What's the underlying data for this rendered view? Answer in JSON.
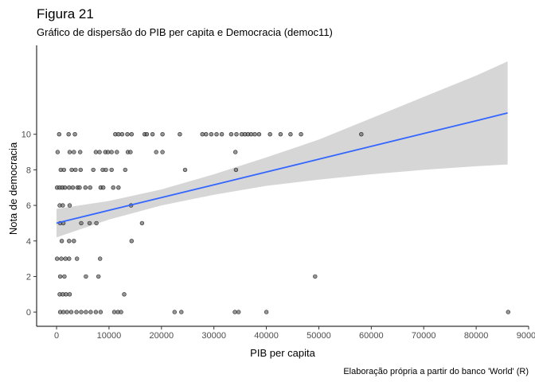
{
  "chart_data": {
    "type": "scatter",
    "title": "Figura 21",
    "subtitle": "Gráfico de dispersão do PIB per capita e Democracia (democ11)",
    "xlabel": "PIB per capita",
    "ylabel": "Nota de democracia",
    "caption": "Elaboração própria a partir do banco 'World' (R)",
    "xlim": [
      -3800,
      90000
    ],
    "ylim": [
      -0.8,
      15.0
    ],
    "x_ticks": [
      0,
      10000,
      20000,
      30000,
      40000,
      50000,
      60000,
      70000,
      80000,
      90000
    ],
    "x_tick_labels": [
      "0",
      "10000",
      "20000",
      "30000",
      "40000",
      "50000",
      "60000",
      "70000",
      "80000",
      "90000"
    ],
    "y_ticks": [
      0,
      2,
      4,
      6,
      8,
      10
    ],
    "y_tick_labels": [
      "0",
      "2",
      "4",
      "6",
      "8",
      "10"
    ],
    "grid": false,
    "point_color": "#000000",
    "point_fill": "#6b6b6b",
    "trend_color": "#3366ff",
    "ci_color": "#d6d6d6",
    "points": [
      {
        "x": 500,
        "y": 10
      },
      {
        "x": 2300,
        "y": 10
      },
      {
        "x": 3500,
        "y": 10
      },
      {
        "x": 11200,
        "y": 10
      },
      {
        "x": 11800,
        "y": 10
      },
      {
        "x": 12500,
        "y": 10
      },
      {
        "x": 13500,
        "y": 10
      },
      {
        "x": 14300,
        "y": 10
      },
      {
        "x": 16800,
        "y": 10
      },
      {
        "x": 17200,
        "y": 10
      },
      {
        "x": 18300,
        "y": 10
      },
      {
        "x": 20200,
        "y": 10
      },
      {
        "x": 23500,
        "y": 10
      },
      {
        "x": 27800,
        "y": 10
      },
      {
        "x": 28500,
        "y": 10
      },
      {
        "x": 29500,
        "y": 10
      },
      {
        "x": 30500,
        "y": 10
      },
      {
        "x": 31500,
        "y": 10
      },
      {
        "x": 33300,
        "y": 10
      },
      {
        "x": 34300,
        "y": 10
      },
      {
        "x": 35300,
        "y": 10
      },
      {
        "x": 35900,
        "y": 10
      },
      {
        "x": 36500,
        "y": 10
      },
      {
        "x": 37100,
        "y": 10
      },
      {
        "x": 37800,
        "y": 10
      },
      {
        "x": 38600,
        "y": 10
      },
      {
        "x": 40700,
        "y": 10
      },
      {
        "x": 42700,
        "y": 10
      },
      {
        "x": 44600,
        "y": 10
      },
      {
        "x": 46600,
        "y": 10
      },
      {
        "x": 58100,
        "y": 10
      },
      {
        "x": 200,
        "y": 9
      },
      {
        "x": 2500,
        "y": 9
      },
      {
        "x": 3300,
        "y": 9
      },
      {
        "x": 4500,
        "y": 9
      },
      {
        "x": 7500,
        "y": 9
      },
      {
        "x": 8200,
        "y": 9
      },
      {
        "x": 9300,
        "y": 9
      },
      {
        "x": 9800,
        "y": 9
      },
      {
        "x": 10500,
        "y": 9
      },
      {
        "x": 11500,
        "y": 9
      },
      {
        "x": 13600,
        "y": 9
      },
      {
        "x": 14100,
        "y": 9
      },
      {
        "x": 19000,
        "y": 9
      },
      {
        "x": 20200,
        "y": 9
      },
      {
        "x": 34100,
        "y": 9
      },
      {
        "x": 800,
        "y": 8
      },
      {
        "x": 1400,
        "y": 8
      },
      {
        "x": 2900,
        "y": 8
      },
      {
        "x": 3600,
        "y": 8
      },
      {
        "x": 4600,
        "y": 8
      },
      {
        "x": 7000,
        "y": 8
      },
      {
        "x": 8800,
        "y": 8
      },
      {
        "x": 9400,
        "y": 8
      },
      {
        "x": 10500,
        "y": 8
      },
      {
        "x": 13100,
        "y": 8
      },
      {
        "x": 24500,
        "y": 8
      },
      {
        "x": 34200,
        "y": 8
      },
      {
        "x": 100,
        "y": 7
      },
      {
        "x": 600,
        "y": 7
      },
      {
        "x": 1100,
        "y": 7
      },
      {
        "x": 1600,
        "y": 7
      },
      {
        "x": 2400,
        "y": 7
      },
      {
        "x": 3100,
        "y": 7
      },
      {
        "x": 4000,
        "y": 7
      },
      {
        "x": 4400,
        "y": 7
      },
      {
        "x": 5500,
        "y": 7
      },
      {
        "x": 6400,
        "y": 7
      },
      {
        "x": 8400,
        "y": 7
      },
      {
        "x": 8900,
        "y": 7
      },
      {
        "x": 10800,
        "y": 7
      },
      {
        "x": 11800,
        "y": 7
      },
      {
        "x": 600,
        "y": 6
      },
      {
        "x": 1200,
        "y": 6
      },
      {
        "x": 2500,
        "y": 6
      },
      {
        "x": 14200,
        "y": 6
      },
      {
        "x": 700,
        "y": 5
      },
      {
        "x": 1300,
        "y": 5
      },
      {
        "x": 4700,
        "y": 5
      },
      {
        "x": 6300,
        "y": 5
      },
      {
        "x": 7600,
        "y": 5
      },
      {
        "x": 16300,
        "y": 5
      },
      {
        "x": 1000,
        "y": 4
      },
      {
        "x": 2400,
        "y": 4
      },
      {
        "x": 3300,
        "y": 4
      },
      {
        "x": 14300,
        "y": 4
      },
      {
        "x": 100,
        "y": 3
      },
      {
        "x": 900,
        "y": 3
      },
      {
        "x": 1700,
        "y": 3
      },
      {
        "x": 2400,
        "y": 3
      },
      {
        "x": 3900,
        "y": 3
      },
      {
        "x": 8300,
        "y": 3
      },
      {
        "x": 700,
        "y": 2
      },
      {
        "x": 1500,
        "y": 2
      },
      {
        "x": 5600,
        "y": 2
      },
      {
        "x": 8000,
        "y": 2
      },
      {
        "x": 49300,
        "y": 2
      },
      {
        "x": 600,
        "y": 1
      },
      {
        "x": 1200,
        "y": 1
      },
      {
        "x": 1800,
        "y": 1
      },
      {
        "x": 2500,
        "y": 1
      },
      {
        "x": 12900,
        "y": 1
      },
      {
        "x": 700,
        "y": 0
      },
      {
        "x": 1300,
        "y": 0
      },
      {
        "x": 2000,
        "y": 0
      },
      {
        "x": 2800,
        "y": 0
      },
      {
        "x": 3800,
        "y": 0
      },
      {
        "x": 4700,
        "y": 0
      },
      {
        "x": 5600,
        "y": 0
      },
      {
        "x": 6500,
        "y": 0
      },
      {
        "x": 7500,
        "y": 0
      },
      {
        "x": 8400,
        "y": 0
      },
      {
        "x": 11000,
        "y": 0
      },
      {
        "x": 11700,
        "y": 0
      },
      {
        "x": 12300,
        "y": 0
      },
      {
        "x": 22500,
        "y": 0
      },
      {
        "x": 23800,
        "y": 0
      },
      {
        "x": 34000,
        "y": 0
      },
      {
        "x": 34700,
        "y": 0
      },
      {
        "x": 40000,
        "y": 0
      },
      {
        "x": 86100,
        "y": 0
      }
    ],
    "trend": {
      "x": [
        0,
        10000,
        20000,
        30000,
        40000,
        50000,
        60000,
        70000,
        80000,
        86000
      ],
      "y": [
        5.0,
        5.72,
        6.44,
        7.16,
        7.88,
        8.6,
        9.32,
        10.04,
        10.76,
        11.2
      ]
    },
    "ci_band": {
      "x": [
        0,
        10000,
        20000,
        30000,
        40000,
        50000,
        60000,
        70000,
        80000,
        86000
      ],
      "lower": [
        4.2,
        5.2,
        6.0,
        6.6,
        7.1,
        7.45,
        7.75,
        8.0,
        8.2,
        8.3
      ],
      "upper": [
        5.8,
        6.25,
        6.9,
        7.75,
        8.7,
        9.7,
        10.9,
        12.1,
        13.3,
        14.1
      ]
    }
  }
}
